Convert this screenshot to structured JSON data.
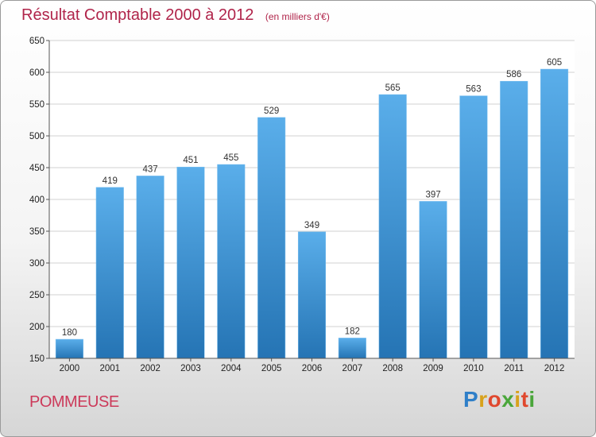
{
  "header": {
    "title": "Résultat Comptable 2000 à 2012",
    "subtitle": "(en milliers d'€)"
  },
  "footer": {
    "commune": "POMMEUSE",
    "brand": "Proxiti"
  },
  "colors": {
    "title": "#b0244a",
    "bar_top": "#5aaeea",
    "bar_bottom": "#2574b4",
    "grid": "#d0d0d0"
  },
  "chart_data": {
    "type": "bar",
    "title": "Résultat Comptable 2000 à 2012",
    "subtitle": "(en milliers d'€)",
    "xlabel": "",
    "ylabel": "",
    "categories": [
      "2000",
      "2001",
      "2002",
      "2003",
      "2004",
      "2005",
      "2006",
      "2007",
      "2008",
      "2009",
      "2010",
      "2011",
      "2012"
    ],
    "values": [
      180,
      419,
      437,
      451,
      455,
      529,
      349,
      182,
      565,
      397,
      563,
      586,
      605
    ],
    "ylim": [
      150,
      650
    ],
    "yticks": [
      150,
      200,
      250,
      300,
      350,
      400,
      450,
      500,
      550,
      600,
      650
    ],
    "grid": true,
    "legend": "none"
  }
}
